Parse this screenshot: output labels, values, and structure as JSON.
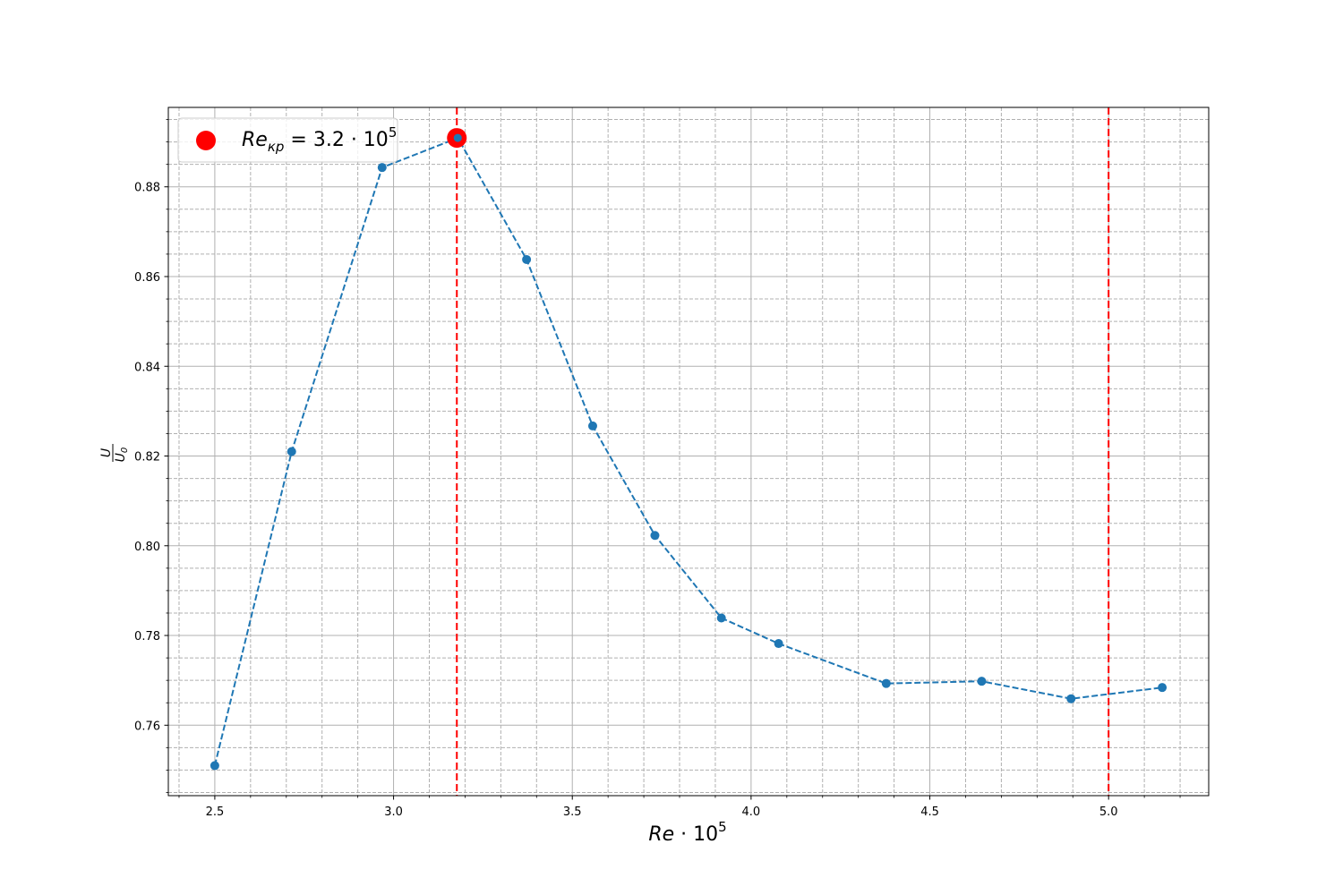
{
  "chart_data": {
    "type": "line",
    "xlabel_main": "Re",
    "xlabel_rest": " · 10",
    "xlabel_exp": "5",
    "ylabel_num": "U",
    "ylabel_den": "U",
    "ylabel_den_sub": "0",
    "x_ticks": [
      "2.5",
      "3.0",
      "3.5",
      "4.0",
      "4.5",
      "5.0"
    ],
    "y_ticks": [
      "0.76",
      "0.78",
      "0.80",
      "0.82",
      "0.84",
      "0.86",
      "0.88"
    ],
    "xlim": [
      2.37,
      5.28
    ],
    "ylim": [
      0.7443,
      0.8977
    ],
    "grid": true,
    "series": [
      {
        "color": "#1f77b4",
        "line_style": "dashed",
        "marker": "circle",
        "x": [
          2.5,
          2.715,
          2.968,
          3.18,
          3.372,
          3.557,
          3.731,
          3.917,
          4.077,
          4.378,
          4.645,
          4.895,
          5.15
        ],
        "y": [
          0.751,
          0.821,
          0.8843,
          0.8909,
          0.8638,
          0.8267,
          0.8023,
          0.7839,
          0.7782,
          0.7693,
          0.7698,
          0.7659,
          0.7684
        ]
      }
    ],
    "critical_point": {
      "x": 3.177,
      "y": 0.8909,
      "color": "#ff0000"
    },
    "vlines": [
      {
        "x": 3.177,
        "color": "#ff0000",
        "style": "dashed"
      },
      {
        "x": 5.0,
        "color": "#ff0000",
        "style": "dashed"
      }
    ],
    "legend": {
      "placement": "top-left",
      "entry_main": "Re",
      "entry_sub": "кр",
      "entry_rest": " = 3.2 · 10",
      "entry_exp": "5"
    }
  }
}
